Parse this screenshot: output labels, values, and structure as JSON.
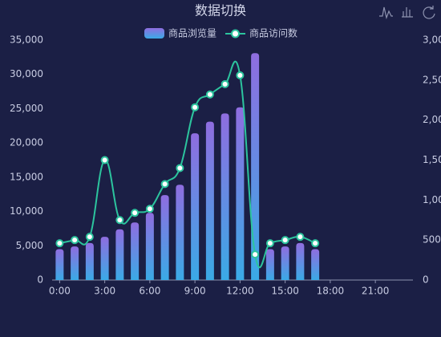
{
  "chart_data": {
    "type": "bar",
    "title": "数据切换",
    "categories": [
      "0:00",
      null,
      null,
      "3:00",
      null,
      null,
      "6:00",
      null,
      null,
      "9:00",
      null,
      null,
      "12:00",
      null,
      null,
      "15:00",
      null,
      null,
      "18:00",
      null,
      null,
      "21:00",
      null,
      null
    ],
    "series": [
      {
        "name": "商品浏览量",
        "type": "bar",
        "color": [
          "#8f6de0",
          "#3aaae6"
        ],
        "values": [
          4500,
          4900,
          5400,
          6300,
          7400,
          8400,
          9800,
          12400,
          13900,
          21400,
          23100,
          24300,
          25200,
          33100,
          4500,
          4900,
          5400,
          4500,
          null,
          null,
          null,
          null,
          null,
          null
        ]
      },
      {
        "name": "商品访问数",
        "type": "line",
        "axis": "y2",
        "color": "#2cc49e",
        "values": [
          460,
          500,
          540,
          1500,
          750,
          840,
          890,
          1200,
          1400,
          2160,
          2320,
          2450,
          2560,
          320,
          460,
          500,
          540,
          460,
          null,
          null,
          null,
          null,
          null,
          null
        ]
      }
    ],
    "ylim": [
      0,
      35000
    ],
    "yticks": [
      0,
      {
        "value": 5000,
        "label": "5,000"
      },
      {
        "value": 10000,
        "label": "10,000"
      },
      {
        "value": 15000,
        "label": "15,000"
      },
      {
        "value": 20000,
        "label": "20,000"
      },
      {
        "value": 25000,
        "label": "25,000"
      },
      {
        "value": 30000,
        "label": "30,000"
      },
      {
        "value": 35000,
        "label": "35,000"
      }
    ],
    "y2lim": [
      0,
      3000
    ],
    "y2ticks": [
      0,
      500,
      {
        "value": 1000,
        "label": "1,000"
      },
      {
        "value": 1500,
        "label": "1,500"
      },
      {
        "value": 2000,
        "label": "2,000"
      },
      {
        "value": 2500,
        "label": "2,500"
      },
      {
        "value": 3000,
        "label": "3,000"
      }
    ]
  }
}
